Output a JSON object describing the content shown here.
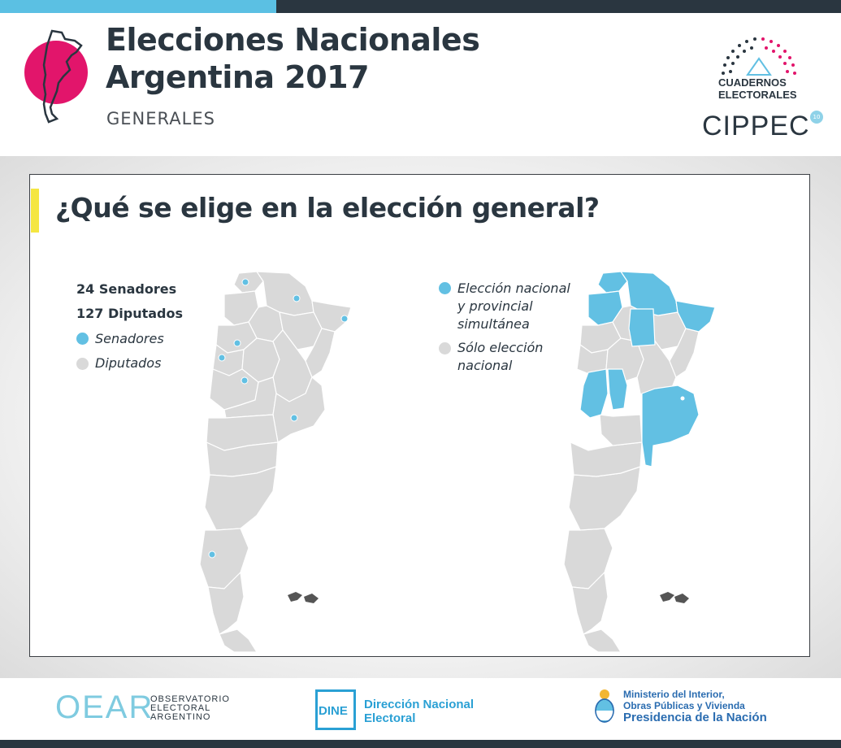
{
  "header": {
    "title_line1": "Elecciones Nacionales",
    "title_line2": "Argentina 2017",
    "subtitle": "GENERALES",
    "cuadernos_line1": "CUADERNOS",
    "cuadernos_line2": "ELECTORALES",
    "cippec": "CIPPEC",
    "cippec_mark": "10"
  },
  "card": {
    "title": "¿Qué se elige en la elección general?"
  },
  "left_map": {
    "count_senators": "24 Senadores",
    "count_deputies": "127 Diputados",
    "legend": [
      {
        "label": "Senadores",
        "color": "#62c0e3"
      },
      {
        "label": "Diputados",
        "color": "#d9d9d9"
      }
    ]
  },
  "right_map": {
    "legend": [
      {
        "label_line1": "Elección nacional",
        "label_line2": "y provincial",
        "label_line3": "simultánea",
        "color": "#62c0e3"
      },
      {
        "label_line1": "Sólo elección",
        "label_line2": "nacional",
        "color": "#d9d9d9"
      }
    ]
  },
  "footer": {
    "oear_logo": "OEAR",
    "oear_line1": "OBSERVATORIO",
    "oear_line2": "ELECTORAL",
    "oear_line3": "ARGENTINO",
    "dine_logo": "DINE",
    "dine_line1": "Dirección Nacional",
    "dine_line2": "Electoral",
    "ministry_line1": "Ministerio del Interior,",
    "ministry_line2": "Obras Públicas y Vivienda",
    "ministry_line3": "Presidencia de la Nación"
  },
  "colors": {
    "accent_blue": "#62c0e3",
    "map_gray": "#d9d9d9",
    "brand_pink": "#e2156b",
    "dark": "#2a3640",
    "highlight_yellow": "#f5e642"
  }
}
